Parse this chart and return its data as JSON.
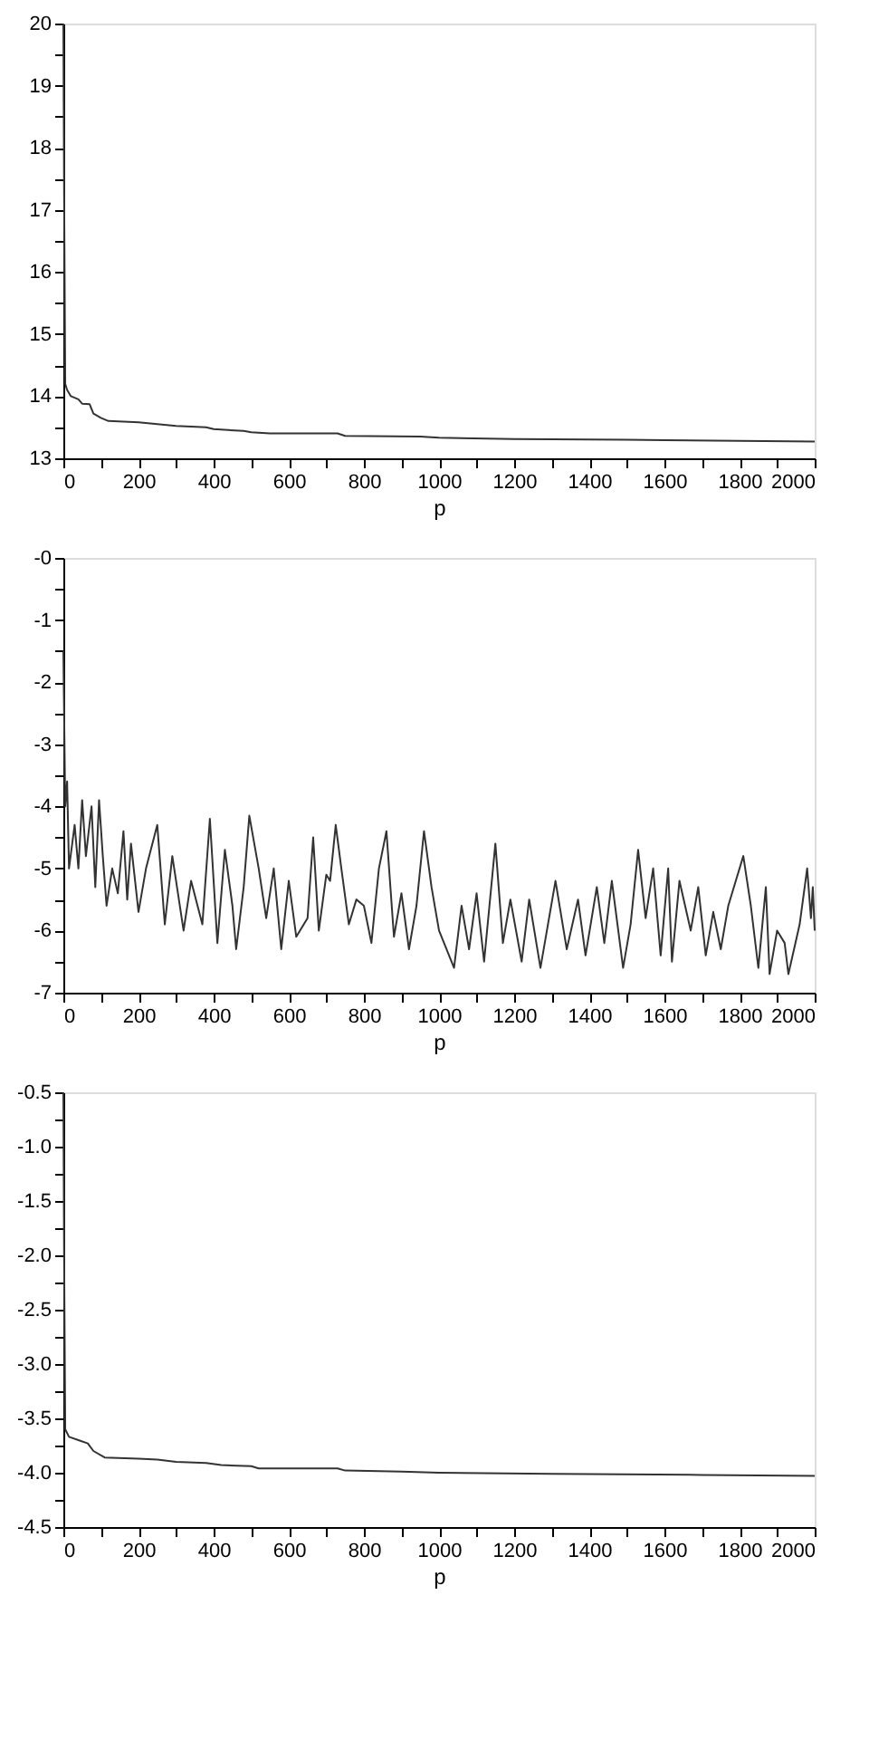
{
  "chart_data": [
    {
      "type": "line",
      "xlabel": "p",
      "xlim": [
        0,
        2000
      ],
      "ylim": [
        13,
        20
      ],
      "xticks": [
        0,
        {
          "value": 100,
          "label": null
        },
        200,
        {
          "value": 300,
          "label": null
        },
        400,
        {
          "value": 500,
          "label": null
        },
        600,
        {
          "value": 700,
          "label": null
        },
        800,
        {
          "value": 900,
          "label": null
        },
        1000,
        {
          "value": 1100,
          "label": null
        },
        1200,
        {
          "value": 1300,
          "label": null
        },
        1400,
        {
          "value": 1500,
          "label": null
        },
        1600,
        {
          "value": 1700,
          "label": null
        },
        1800,
        {
          "value": 1900,
          "label": null
        },
        2000
      ],
      "yticks": [
        13,
        {
          "value": 13.5,
          "label": null
        },
        14,
        {
          "value": 14.5,
          "label": null
        },
        15,
        {
          "value": 15.5,
          "label": null
        },
        16,
        {
          "value": 16.5,
          "label": null
        },
        17,
        {
          "value": 17.5,
          "label": null
        },
        18,
        {
          "value": 18.5,
          "label": null
        },
        19,
        {
          "value": 19.5,
          "label": null
        },
        20
      ],
      "grid": false,
      "line_style": "solid",
      "series": [
        {
          "color": "#333333",
          "x": [
            0,
            2,
            5,
            10,
            20,
            40,
            50,
            70,
            80,
            100,
            120,
            200,
            250,
            300,
            380,
            400,
            480,
            500,
            550,
            730,
            750,
            950,
            1000,
            1200,
            1500,
            1600,
            1800,
            2000
          ],
          "values": [
            20,
            17.3,
            14.2,
            14.1,
            14.0,
            13.95,
            13.88,
            13.87,
            13.72,
            13.65,
            13.6,
            13.58,
            13.55,
            13.52,
            13.5,
            13.47,
            13.44,
            13.42,
            13.4,
            13.4,
            13.36,
            13.35,
            13.33,
            13.31,
            13.3,
            13.29,
            13.28,
            13.27
          ]
        }
      ]
    },
    {
      "type": "line",
      "xlabel": "p",
      "xlim": [
        0,
        2000
      ],
      "ylim": [
        -7,
        0
      ],
      "xticks": [
        0,
        {
          "value": 100,
          "label": null
        },
        200,
        {
          "value": 300,
          "label": null
        },
        400,
        {
          "value": 500,
          "label": null
        },
        600,
        {
          "value": 700,
          "label": null
        },
        800,
        {
          "value": 900,
          "label": null
        },
        1000,
        {
          "value": 1100,
          "label": null
        },
        1200,
        {
          "value": 1300,
          "label": null
        },
        1400,
        {
          "value": 1500,
          "label": null
        },
        1600,
        {
          "value": 1700,
          "label": null
        },
        1800,
        {
          "value": 1900,
          "label": null
        },
        2000
      ],
      "yticks": [
        -7,
        {
          "value": -6.5,
          "label": null
        },
        -6,
        {
          "value": -5.5,
          "label": null
        },
        -5,
        {
          "value": -4.5,
          "label": null
        },
        -4,
        {
          "value": -3.5,
          "label": null
        },
        -3,
        {
          "value": -2.5,
          "label": null
        },
        -2,
        {
          "value": -1.5,
          "label": null
        },
        -1,
        {
          "value": -0.5,
          "label": null
        },
        {
          "value": 0,
          "label": "-0"
        }
      ],
      "grid": false,
      "line_style": "solid",
      "series": [
        {
          "color": "#333333",
          "x": [
            0,
            5,
            10,
            15,
            30,
            40,
            50,
            60,
            75,
            85,
            95,
            105,
            115,
            130,
            145,
            160,
            170,
            180,
            200,
            220,
            250,
            270,
            290,
            320,
            340,
            370,
            390,
            410,
            430,
            450,
            460,
            480,
            495,
            520,
            540,
            560,
            580,
            600,
            620,
            650,
            665,
            680,
            700,
            710,
            725,
            740,
            760,
            780,
            800,
            820,
            840,
            860,
            880,
            900,
            920,
            940,
            960,
            980,
            1000,
            1040,
            1060,
            1080,
            1100,
            1120,
            1150,
            1170,
            1190,
            1220,
            1240,
            1270,
            1310,
            1340,
            1370,
            1390,
            1420,
            1440,
            1460,
            1490,
            1510,
            1530,
            1550,
            1570,
            1590,
            1610,
            1620,
            1640,
            1670,
            1690,
            1710,
            1730,
            1750,
            1770,
            1790,
            1810,
            1830,
            1850,
            1870,
            1880,
            1900,
            1920,
            1930,
            1960,
            1980,
            1990,
            1995,
            2000
          ],
          "values": [
            -1.5,
            -4.0,
            -3.6,
            -5.0,
            -4.3,
            -5.0,
            -3.9,
            -4.8,
            -4.0,
            -5.3,
            -3.9,
            -4.8,
            -5.6,
            -5.0,
            -5.4,
            -4.4,
            -5.5,
            -4.6,
            -5.7,
            -5.0,
            -4.3,
            -5.9,
            -4.8,
            -6.0,
            -5.2,
            -5.9,
            -4.2,
            -6.2,
            -4.7,
            -5.6,
            -6.3,
            -5.3,
            -4.15,
            -5.0,
            -5.8,
            -5.0,
            -6.3,
            -5.2,
            -6.1,
            -5.8,
            -4.5,
            -6.0,
            -5.1,
            -5.2,
            -4.3,
            -5.0,
            -5.9,
            -5.5,
            -5.6,
            -6.2,
            -5.0,
            -4.4,
            -6.1,
            -5.4,
            -6.3,
            -5.6,
            -4.4,
            -5.3,
            -6.0,
            -6.6,
            -5.6,
            -6.3,
            -5.4,
            -6.5,
            -4.6,
            -6.2,
            -5.5,
            -6.5,
            -5.5,
            -6.6,
            -5.2,
            -6.3,
            -5.5,
            -6.4,
            -5.3,
            -6.2,
            -5.2,
            -6.6,
            -5.9,
            -4.7,
            -5.8,
            -5.0,
            -6.4,
            -5.0,
            -6.5,
            -5.2,
            -6.0,
            -5.3,
            -6.4,
            -5.7,
            -6.3,
            -5.6,
            -5.2,
            -4.8,
            -5.6,
            -6.6,
            -5.3,
            -6.7,
            -6.0,
            -6.2,
            -6.7,
            -5.9,
            -5.0,
            -5.8,
            -5.3,
            -6.0
          ]
        }
      ]
    },
    {
      "type": "line",
      "xlabel": "p",
      "xlim": [
        0,
        2000
      ],
      "ylim": [
        -4.5,
        -0.5
      ],
      "xticks": [
        0,
        {
          "value": 100,
          "label": null
        },
        200,
        {
          "value": 300,
          "label": null
        },
        400,
        {
          "value": 500,
          "label": null
        },
        600,
        {
          "value": 700,
          "label": null
        },
        800,
        {
          "value": 900,
          "label": null
        },
        1000,
        {
          "value": 1100,
          "label": null
        },
        1200,
        {
          "value": 1300,
          "label": null
        },
        1400,
        {
          "value": 1500,
          "label": null
        },
        1600,
        {
          "value": 1700,
          "label": null
        },
        1800,
        {
          "value": 1900,
          "label": null
        },
        2000
      ],
      "yticks": [
        -4.5,
        {
          "value": -4.25,
          "label": null
        },
        {
          "value": -4,
          "label": "-4.0"
        },
        {
          "value": -3.75,
          "label": null
        },
        -3.5,
        {
          "value": -3.25,
          "label": null
        },
        {
          "value": -3,
          "label": "-3.0"
        },
        {
          "value": -2.75,
          "label": null
        },
        -2.5,
        {
          "value": -2.25,
          "label": null
        },
        {
          "value": -2,
          "label": "-2.0"
        },
        {
          "value": -1.75,
          "label": null
        },
        -1.5,
        {
          "value": -1.25,
          "label": null
        },
        {
          "value": -1,
          "label": "-1.0"
        },
        {
          "value": -0.75,
          "label": null
        },
        -0.5
      ],
      "grid": false,
      "line_style": "solid",
      "series": [
        {
          "color": "#333333",
          "x": [
            0,
            2,
            5,
            15,
            40,
            65,
            80,
            110,
            200,
            250,
            300,
            380,
            420,
            500,
            520,
            730,
            750,
            900,
            1000,
            1300,
            1700,
            2000
          ],
          "values": [
            -0.5,
            -2.0,
            -3.6,
            -3.67,
            -3.7,
            -3.73,
            -3.8,
            -3.86,
            -3.87,
            -3.88,
            -3.9,
            -3.91,
            -3.93,
            -3.94,
            -3.96,
            -3.96,
            -3.98,
            -3.99,
            -4.0,
            -4.01,
            -4.02,
            -4.03
          ]
        }
      ]
    }
  ]
}
